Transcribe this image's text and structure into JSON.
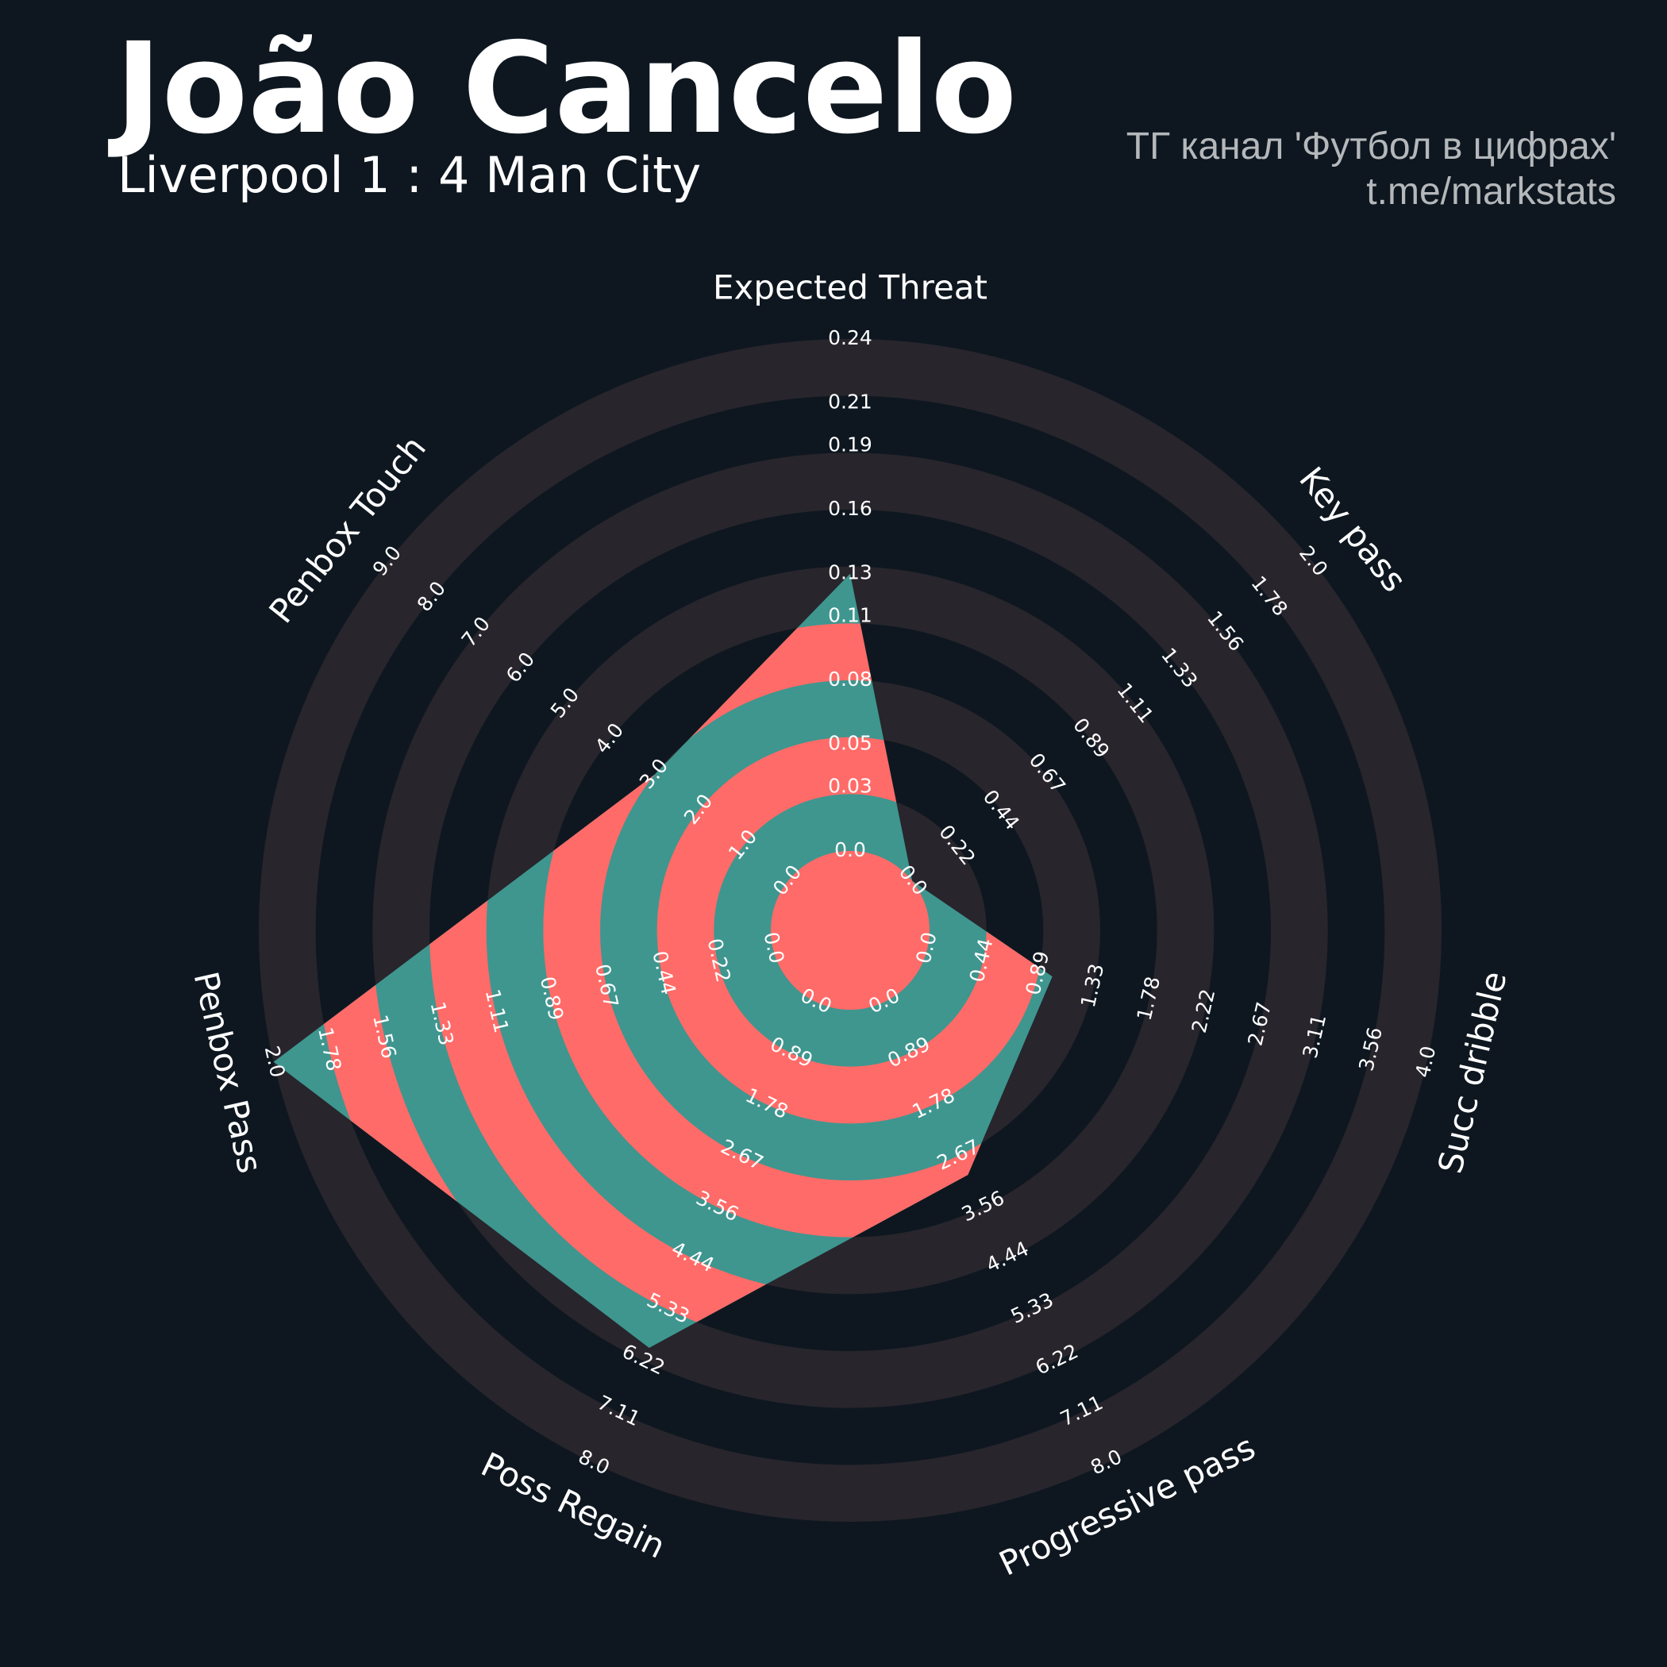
{
  "chart_data": {
    "type": "radar",
    "title": "João Cancelo",
    "subtitle": "Liverpool 1 : 4 Man City",
    "annotations": [
      "ТГ канал 'Футбол в цифрах'",
      "t.me/markstats"
    ],
    "categories": [
      "Expected Threat",
      "Key pass",
      "Succ dribble",
      "Progressive pass",
      "Poss Regain",
      "Penbox Pass",
      "Penbox Touch"
    ],
    "values": [
      0.13,
      0,
      1,
      3,
      6,
      2,
      3
    ],
    "ranges": [
      [
        0,
        0.24
      ],
      [
        0,
        2
      ],
      [
        0,
        4
      ],
      [
        0,
        8
      ],
      [
        0,
        8
      ],
      [
        0,
        2
      ],
      [
        0,
        9
      ]
    ],
    "ticks": [
      [
        {
          "value": 0,
          "label": "0.0"
        },
        0.03,
        0.05,
        0.08,
        0.11,
        0.13,
        0.16,
        0.19,
        0.21,
        0.24
      ],
      [
        {
          "value": 0,
          "label": "0.0"
        },
        0.22,
        0.44,
        0.67,
        0.89,
        1.11,
        1.33,
        1.56,
        1.78,
        {
          "value": 2,
          "label": "2.0"
        }
      ],
      [
        {
          "value": 0,
          "label": "0.0"
        },
        0.44,
        0.89,
        1.33,
        1.78,
        2.22,
        2.67,
        3.11,
        3.56,
        {
          "value": 4,
          "label": "4.0"
        }
      ],
      [
        {
          "value": 0,
          "label": "0.0"
        },
        0.89,
        1.78,
        2.67,
        3.56,
        4.44,
        5.33,
        6.22,
        7.11,
        {
          "value": 8,
          "label": "8.0"
        }
      ],
      [
        {
          "value": 0,
          "label": "0.0"
        },
        0.89,
        1.78,
        2.67,
        3.56,
        4.44,
        5.33,
        6.22,
        7.11,
        {
          "value": 8,
          "label": "8.0"
        }
      ],
      [
        {
          "value": 0,
          "label": "0.0"
        },
        0.22,
        0.44,
        0.67,
        0.89,
        1.11,
        1.33,
        1.56,
        1.78,
        {
          "value": 2,
          "label": "2.0"
        }
      ],
      [
        {
          "value": 0,
          "label": "0.0"
        },
        {
          "value": 1,
          "label": "1.0"
        },
        {
          "value": 2,
          "label": "2.0"
        },
        {
          "value": 3,
          "label": "3.0"
        },
        {
          "value": 4,
          "label": "4.0"
        },
        {
          "value": 5,
          "label": "5.0"
        },
        {
          "value": 6,
          "label": "6.0"
        },
        {
          "value": 7,
          "label": "7.0"
        },
        {
          "value": 8,
          "label": "8.0"
        },
        {
          "value": 9,
          "label": "9.0"
        }
      ]
    ],
    "color": "#3e968f",
    "ring_color": "#ff6b68"
  }
}
